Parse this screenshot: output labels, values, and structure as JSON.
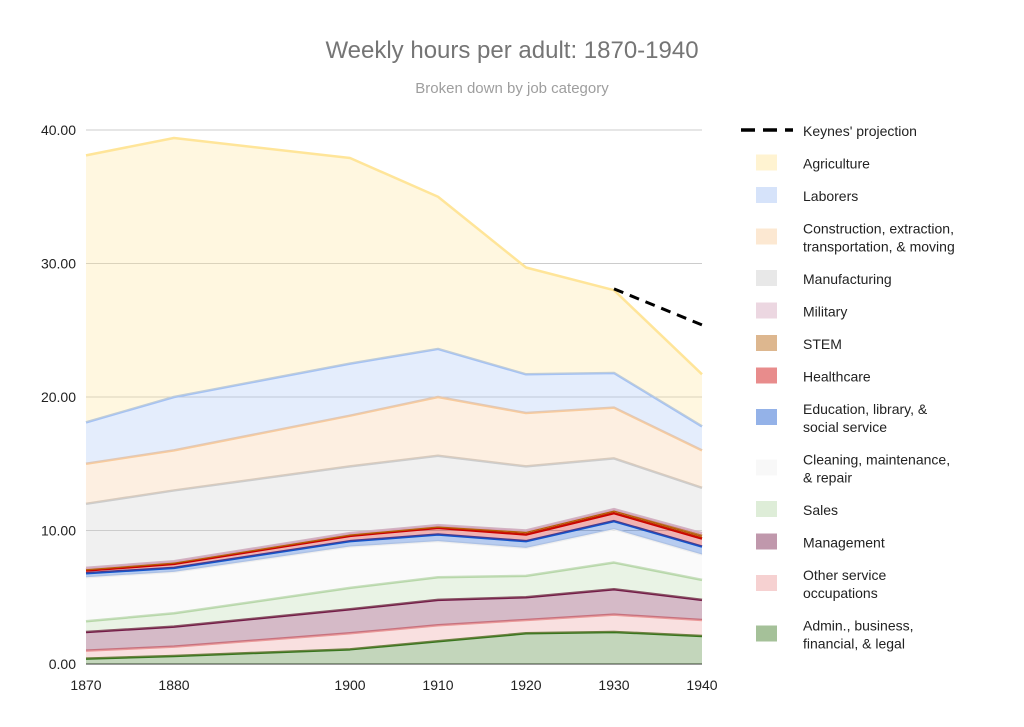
{
  "chart_data": {
    "type": "area",
    "stacked": true,
    "title": "Weekly hours per adult: 1870-1940",
    "subtitle": "Broken down by job category",
    "xlabel": "",
    "ylabel": "",
    "x": [
      1870,
      1880,
      1900,
      1910,
      1920,
      1930,
      1940
    ],
    "x_tick_labels": [
      "1870",
      "1880",
      "1900",
      "1910",
      "1920",
      "1930",
      "1940"
    ],
    "ylim": [
      0,
      40
    ],
    "y_ticks": [
      0,
      10,
      20,
      30,
      40
    ],
    "y_tick_labels": [
      "0.00",
      "10.00",
      "20.00",
      "30.00",
      "40.00"
    ],
    "grid": true,
    "legend_position": "right",
    "series": [
      {
        "name": "Admin., business, financial, & legal",
        "color": "#38761d",
        "values": [
          0.4,
          0.6,
          1.1,
          1.7,
          2.3,
          2.4,
          2.1
        ]
      },
      {
        "name": "Other service occupations",
        "color": "#ea9999",
        "values": [
          0.6,
          0.7,
          1.2,
          1.2,
          1.0,
          1.3,
          1.2
        ]
      },
      {
        "name": "Management",
        "color": "#741b47",
        "values": [
          1.4,
          1.5,
          1.8,
          1.9,
          1.7,
          1.9,
          1.5
        ]
      },
      {
        "name": "Sales",
        "color": "#b6d7a8",
        "values": [
          0.8,
          1.0,
          1.6,
          1.7,
          1.6,
          2.0,
          1.5
        ]
      },
      {
        "name": "Cleaning, maintenance, & repair",
        "color": "#efefef",
        "values": [
          3.3,
          3.1,
          3.1,
          2.7,
          2.1,
          2.5,
          1.9
        ]
      },
      {
        "name": "Education, library, & social service",
        "color": "#1155cc",
        "values": [
          0.3,
          0.3,
          0.4,
          0.5,
          0.5,
          0.6,
          0.6
        ]
      },
      {
        "name": "Healthcare",
        "color": "#cc0000",
        "values": [
          0.2,
          0.3,
          0.4,
          0.5,
          0.5,
          0.6,
          0.6
        ]
      },
      {
        "name": "STEM",
        "color": "#b45f06",
        "values": [
          0.1,
          0.1,
          0.1,
          0.1,
          0.2,
          0.2,
          0.2
        ]
      },
      {
        "name": "Military",
        "color": "#d5a6bd",
        "values": [
          0.1,
          0.1,
          0.1,
          0.1,
          0.1,
          0.1,
          0.2
        ]
      },
      {
        "name": "Manufacturing",
        "color": "#cccccc",
        "values": [
          4.8,
          5.3,
          5.0,
          5.2,
          4.8,
          3.8,
          3.4
        ]
      },
      {
        "name": "Construction, extraction, transportation, & moving",
        "color": "#f9cb9c",
        "values": [
          3.0,
          3.0,
          3.8,
          4.4,
          4.0,
          3.8,
          2.8
        ]
      },
      {
        "name": "Laborers",
        "color": "#a4c2f4",
        "values": [
          3.1,
          4.0,
          3.9,
          3.6,
          2.9,
          2.6,
          1.8
        ]
      },
      {
        "name": "Agriculture",
        "color": "#ffe599",
        "values": [
          20.0,
          19.4,
          15.4,
          11.4,
          8.0,
          6.2,
          3.9
        ]
      }
    ],
    "line_series": [
      {
        "name": "Keynes' projection",
        "color": "#000000",
        "style": "dashed",
        "x": [
          1930,
          1940
        ],
        "values": [
          28.1,
          25.4
        ]
      }
    ],
    "legend": [
      "Keynes' projection",
      "Agriculture",
      "Laborers",
      "Construction, extraction, transportation, & moving",
      "Manufacturing",
      "Military",
      "STEM",
      "Healthcare",
      "Education, library, & social service",
      "Cleaning, maintenance, & repair",
      "Sales",
      "Management",
      "Other service occupations",
      "Admin., business, financial, & legal"
    ]
  }
}
